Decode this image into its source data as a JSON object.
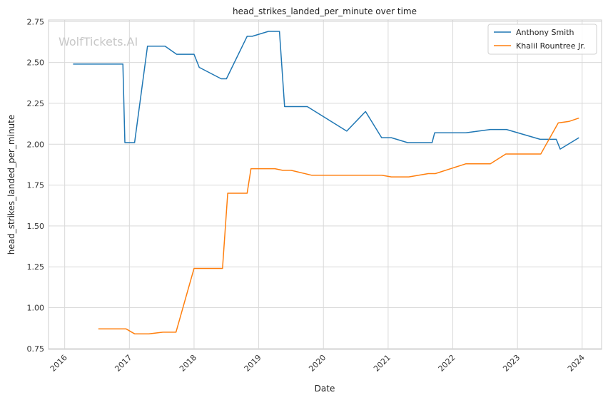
{
  "chart_data": {
    "type": "line",
    "title": "head_strikes_landed_per_minute over time",
    "xlabel": "Date",
    "ylabel": "head_strikes_landed_per_minute",
    "watermark": "WolfTickets.AI",
    "xlim": [
      2015.75,
      2024.3
    ],
    "ylim": [
      0.745,
      2.76
    ],
    "x_ticks": [
      2016,
      2017,
      2018,
      2019,
      2020,
      2021,
      2022,
      2023,
      2024
    ],
    "x_tick_labels": [
      "2016",
      "2017",
      "2018",
      "2019",
      "2020",
      "2021",
      "2022",
      "2023",
      "2024"
    ],
    "y_ticks": [
      0.75,
      1.0,
      1.25,
      1.5,
      1.75,
      2.0,
      2.25,
      2.5,
      2.75
    ],
    "y_tick_labels": [
      "0.75",
      "1.00",
      "1.25",
      "1.50",
      "1.75",
      "2.00",
      "2.25",
      "2.50",
      "2.75"
    ],
    "grid": true,
    "legend_position": "top-right",
    "series": [
      {
        "name": "Anthony Smith",
        "color": "#1f77b4",
        "points": [
          [
            2016.13,
            2.49
          ],
          [
            2016.9,
            2.49
          ],
          [
            2016.93,
            2.01
          ],
          [
            2017.08,
            2.01
          ],
          [
            2017.28,
            2.6
          ],
          [
            2017.55,
            2.6
          ],
          [
            2017.73,
            2.55
          ],
          [
            2018.0,
            2.55
          ],
          [
            2018.08,
            2.47
          ],
          [
            2018.42,
            2.4
          ],
          [
            2018.5,
            2.4
          ],
          [
            2018.82,
            2.66
          ],
          [
            2018.9,
            2.66
          ],
          [
            2019.15,
            2.69
          ],
          [
            2019.32,
            2.69
          ],
          [
            2019.4,
            2.23
          ],
          [
            2019.75,
            2.23
          ],
          [
            2020.36,
            2.08
          ],
          [
            2020.65,
            2.2
          ],
          [
            2020.9,
            2.04
          ],
          [
            2021.05,
            2.04
          ],
          [
            2021.3,
            2.01
          ],
          [
            2021.68,
            2.01
          ],
          [
            2021.72,
            2.07
          ],
          [
            2022.2,
            2.07
          ],
          [
            2022.58,
            2.09
          ],
          [
            2022.83,
            2.09
          ],
          [
            2023.35,
            2.03
          ],
          [
            2023.6,
            2.03
          ],
          [
            2023.66,
            1.97
          ],
          [
            2023.95,
            2.04
          ]
        ]
      },
      {
        "name": "Khalil Rountree Jr.",
        "color": "#ff7f0e",
        "points": [
          [
            2016.52,
            0.87
          ],
          [
            2016.95,
            0.87
          ],
          [
            2017.08,
            0.84
          ],
          [
            2017.3,
            0.84
          ],
          [
            2017.52,
            0.85
          ],
          [
            2017.72,
            0.85
          ],
          [
            2018.0,
            1.24
          ],
          [
            2018.44,
            1.24
          ],
          [
            2018.52,
            1.7
          ],
          [
            2018.82,
            1.7
          ],
          [
            2018.88,
            1.85
          ],
          [
            2019.25,
            1.85
          ],
          [
            2019.37,
            1.84
          ],
          [
            2019.5,
            1.84
          ],
          [
            2019.82,
            1.81
          ],
          [
            2020.9,
            1.81
          ],
          [
            2021.05,
            1.8
          ],
          [
            2021.32,
            1.8
          ],
          [
            2021.62,
            1.82
          ],
          [
            2021.73,
            1.82
          ],
          [
            2022.2,
            1.88
          ],
          [
            2022.58,
            1.88
          ],
          [
            2022.82,
            1.94
          ],
          [
            2023.36,
            1.94
          ],
          [
            2023.63,
            2.13
          ],
          [
            2023.8,
            2.14
          ],
          [
            2023.95,
            2.16
          ]
        ]
      }
    ]
  }
}
